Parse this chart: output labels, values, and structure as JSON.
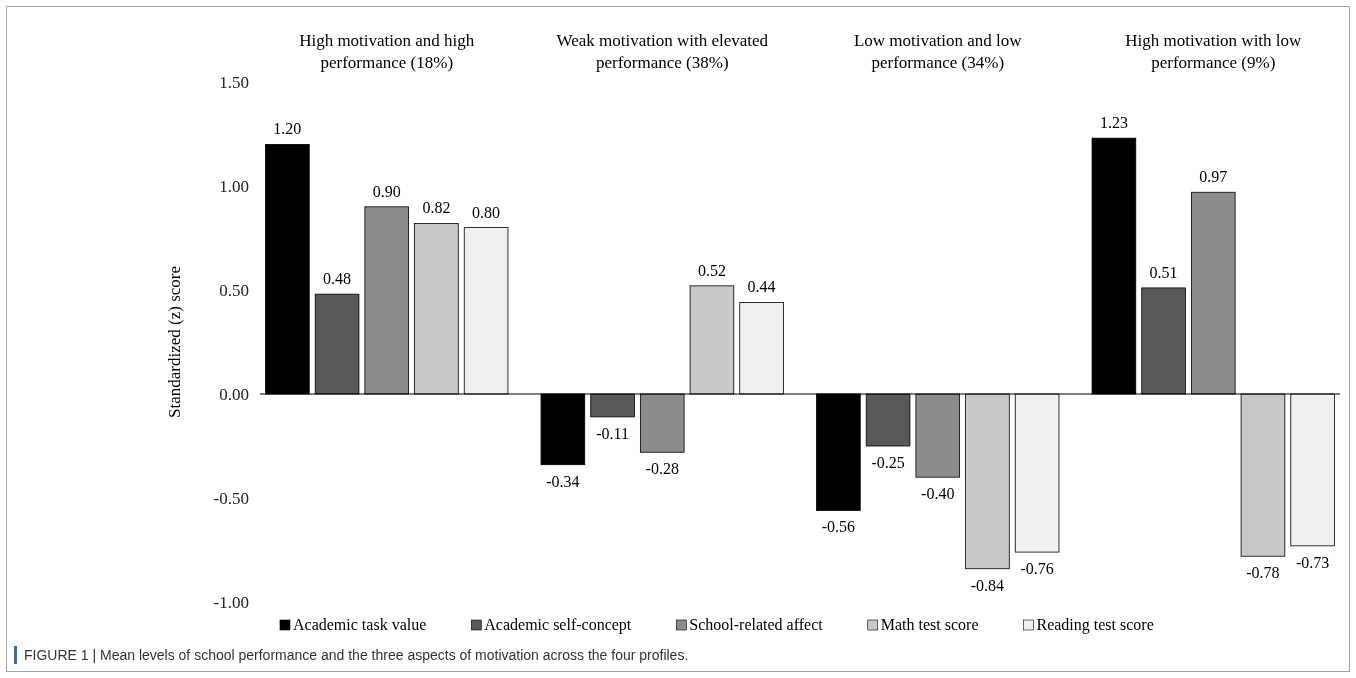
{
  "chart_data": {
    "type": "bar",
    "ylabel": "Standardized (z) score",
    "categories": [
      "High motivation and high performance (18%)",
      "Weak motivation with elevated performance (38%)",
      "Low motivation and low performance (34%)",
      "High motivation with low performance (9%)"
    ],
    "series": [
      {
        "name": "Academic task value",
        "color": "#000000",
        "values": [
          1.2,
          -0.34,
          -0.56,
          1.23
        ],
        "value_labels": [
          "1.20",
          "-0.34",
          "-0.56",
          "1.23"
        ]
      },
      {
        "name": "Academic self-concept",
        "color": "#595959",
        "values": [
          0.48,
          -0.11,
          -0.25,
          0.51
        ],
        "value_labels": [
          "0.48",
          "-0.11",
          "-0.25",
          "0.51"
        ]
      },
      {
        "name": "School-related affect",
        "color": "#8c8c8c",
        "values": [
          0.9,
          -0.28,
          -0.4,
          0.97
        ],
        "value_labels": [
          "0.90",
          "-0.28",
          "-0.40",
          "0.97"
        ]
      },
      {
        "name": "Math test score",
        "color": "#c8c8c8",
        "values": [
          0.82,
          0.52,
          -0.84,
          -0.78
        ],
        "value_labels": [
          "0.82",
          "0.52",
          "-0.84",
          "-0.78"
        ]
      },
      {
        "name": "Reading test score",
        "color": "#f0f0f0",
        "values": [
          0.8,
          0.44,
          -0.76,
          -0.73
        ],
        "value_labels": [
          "0.80",
          "0.44",
          "-0.76",
          "-0.73"
        ]
      }
    ],
    "ylim": [
      -1,
      1.5
    ],
    "yticks": [
      {
        "value": -1,
        "label": "-1.00"
      },
      {
        "value": -0.5,
        "label": "-0.50"
      },
      {
        "value": 0,
        "label": "0.00"
      },
      {
        "value": 0.5,
        "label": "0.50"
      },
      {
        "value": 1,
        "label": "1.00"
      },
      {
        "value": 1.5,
        "label": "1.50"
      }
    ],
    "legend": "bottom",
    "annotations": [
      "FIGURE 1 | Mean levels of school performance and the three aspects of motivation across the four profiles."
    ]
  }
}
